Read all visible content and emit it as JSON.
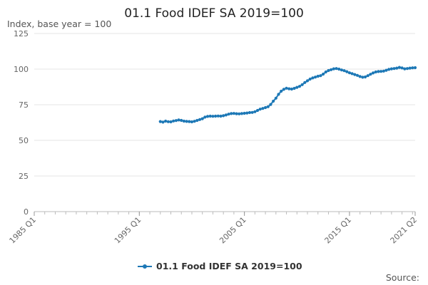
{
  "chart_data": {
    "type": "line",
    "title": "01.1 Food IDEF SA 2019=100",
    "ylabel": "Index, base year = 100",
    "xlabel": "",
    "ylim": [
      0,
      125
    ],
    "yticks": [
      0,
      25,
      50,
      75,
      100,
      125
    ],
    "x_range": [
      "1985 Q1",
      "2021 Q2"
    ],
    "xticks": [
      "1985 Q1",
      "1995 Q1",
      "2005 Q1",
      "2015 Q1",
      "2021 Q2"
    ],
    "grid": true,
    "legend_position": "bottom-center",
    "series": [
      {
        "name": "01.1 Food IDEF SA 2019=100",
        "color": "#1d78b6",
        "points": [
          [
            "1997 Q1",
            63.2
          ],
          [
            "1997 Q2",
            62.8
          ],
          [
            "1997 Q3",
            63.5
          ],
          [
            "1997 Q4",
            63.1
          ],
          [
            "1998 Q1",
            63.0
          ],
          [
            "1998 Q2",
            63.6
          ],
          [
            "1998 Q3",
            63.9
          ],
          [
            "1998 Q4",
            64.3
          ],
          [
            "1999 Q1",
            64.0
          ],
          [
            "1999 Q2",
            63.5
          ],
          [
            "1999 Q3",
            63.3
          ],
          [
            "1999 Q4",
            63.2
          ],
          [
            "2000 Q1",
            63.0
          ],
          [
            "2000 Q2",
            63.4
          ],
          [
            "2000 Q3",
            64.0
          ],
          [
            "2000 Q4",
            64.6
          ],
          [
            "2001 Q1",
            65.2
          ],
          [
            "2001 Q2",
            66.3
          ],
          [
            "2001 Q3",
            66.8
          ],
          [
            "2001 Q4",
            67.0
          ],
          [
            "2002 Q1",
            66.9
          ],
          [
            "2002 Q2",
            67.0
          ],
          [
            "2002 Q3",
            67.1
          ],
          [
            "2002 Q4",
            67.0
          ],
          [
            "2003 Q1",
            67.3
          ],
          [
            "2003 Q2",
            67.8
          ],
          [
            "2003 Q3",
            68.4
          ],
          [
            "2003 Q4",
            68.8
          ],
          [
            "2004 Q1",
            68.9
          ],
          [
            "2004 Q2",
            68.7
          ],
          [
            "2004 Q3",
            68.6
          ],
          [
            "2004 Q4",
            68.8
          ],
          [
            "2005 Q1",
            69.0
          ],
          [
            "2005 Q2",
            69.2
          ],
          [
            "2005 Q3",
            69.5
          ],
          [
            "2005 Q4",
            69.6
          ],
          [
            "2006 Q1",
            70.1
          ],
          [
            "2006 Q2",
            71.0
          ],
          [
            "2006 Q3",
            71.9
          ],
          [
            "2006 Q4",
            72.4
          ],
          [
            "2007 Q1",
            73.0
          ],
          [
            "2007 Q2",
            73.6
          ],
          [
            "2007 Q3",
            75.2
          ],
          [
            "2007 Q4",
            77.5
          ],
          [
            "2008 Q1",
            79.6
          ],
          [
            "2008 Q2",
            82.3
          ],
          [
            "2008 Q3",
            84.5
          ],
          [
            "2008 Q4",
            85.8
          ],
          [
            "2009 Q1",
            86.6
          ],
          [
            "2009 Q2",
            86.2
          ],
          [
            "2009 Q3",
            86.0
          ],
          [
            "2009 Q4",
            86.5
          ],
          [
            "2010 Q1",
            87.2
          ],
          [
            "2010 Q2",
            87.9
          ],
          [
            "2010 Q3",
            89.1
          ],
          [
            "2010 Q4",
            90.6
          ],
          [
            "2011 Q1",
            91.8
          ],
          [
            "2011 Q2",
            93.0
          ],
          [
            "2011 Q3",
            93.8
          ],
          [
            "2011 Q4",
            94.4
          ],
          [
            "2012 Q1",
            95.0
          ],
          [
            "2012 Q2",
            95.4
          ],
          [
            "2012 Q3",
            96.5
          ],
          [
            "2012 Q4",
            98.0
          ],
          [
            "2013 Q1",
            99.0
          ],
          [
            "2013 Q2",
            99.6
          ],
          [
            "2013 Q3",
            100.2
          ],
          [
            "2013 Q4",
            100.4
          ],
          [
            "2014 Q1",
            100.0
          ],
          [
            "2014 Q2",
            99.4
          ],
          [
            "2014 Q3",
            98.9
          ],
          [
            "2014 Q4",
            98.2
          ],
          [
            "2015 Q1",
            97.4
          ],
          [
            "2015 Q2",
            96.8
          ],
          [
            "2015 Q3",
            96.2
          ],
          [
            "2015 Q4",
            95.6
          ],
          [
            "2016 Q1",
            94.8
          ],
          [
            "2016 Q2",
            94.3
          ],
          [
            "2016 Q3",
            94.5
          ],
          [
            "2016 Q4",
            95.4
          ],
          [
            "2017 Q1",
            96.4
          ],
          [
            "2017 Q2",
            97.3
          ],
          [
            "2017 Q3",
            98.0
          ],
          [
            "2017 Q4",
            98.3
          ],
          [
            "2018 Q1",
            98.4
          ],
          [
            "2018 Q2",
            98.6
          ],
          [
            "2018 Q3",
            99.2
          ],
          [
            "2018 Q4",
            99.8
          ],
          [
            "2019 Q1",
            100.2
          ],
          [
            "2019 Q2",
            100.4
          ],
          [
            "2019 Q3",
            100.7
          ],
          [
            "2019 Q4",
            101.2
          ],
          [
            "2020 Q1",
            100.8
          ],
          [
            "2020 Q2",
            100.2
          ],
          [
            "2020 Q3",
            100.4
          ],
          [
            "2020 Q4",
            100.7
          ],
          [
            "2021 Q1",
            100.9
          ],
          [
            "2021 Q2",
            101.0
          ]
        ]
      }
    ],
    "source_label": "Source:"
  }
}
